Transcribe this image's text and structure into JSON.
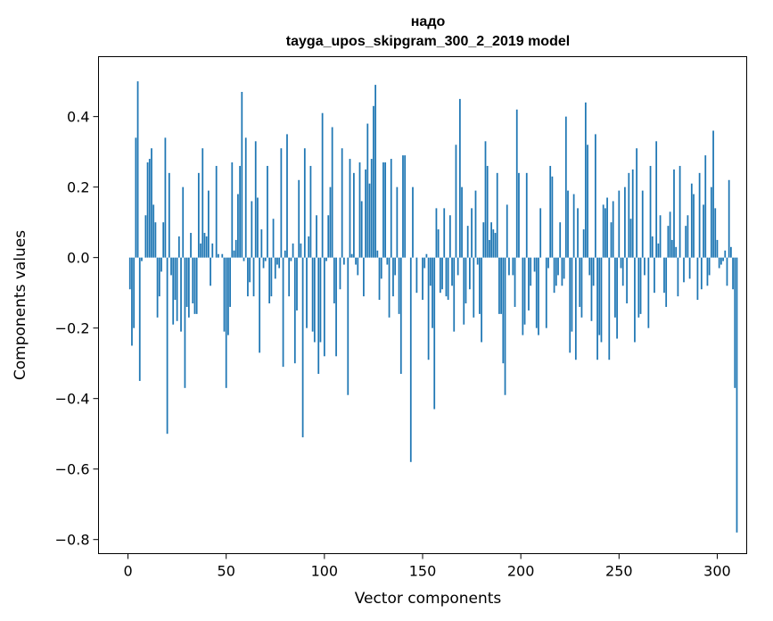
{
  "chart_data": {
    "type": "bar",
    "title_line1": "надо",
    "title_line2": "tayga_upos_skipgram_300_2_2019 model",
    "xlabel": "Vector components",
    "ylabel": "Components values",
    "xlim": [
      -15,
      315
    ],
    "ylim": [
      -0.84,
      0.57
    ],
    "xticks": [
      0,
      50,
      100,
      150,
      200,
      250,
      300
    ],
    "xtick_labels": [
      "0",
      "50",
      "100",
      "150",
      "200",
      "250",
      "300"
    ],
    "yticks": [
      -0.8,
      -0.6,
      -0.4,
      -0.2,
      0.0,
      0.2,
      0.4
    ],
    "ytick_labels": [
      "−0.8",
      "−0.6",
      "−0.4",
      "−0.2",
      "0.0",
      "0.2",
      "0.4"
    ],
    "bar_color": "#1f77b4",
    "values": [
      0.0,
      -0.09,
      -0.25,
      -0.2,
      0.34,
      0.5,
      -0.35,
      -0.01,
      0.0,
      0.12,
      0.27,
      0.28,
      0.31,
      0.15,
      0.1,
      -0.17,
      -0.11,
      -0.04,
      0.1,
      0.34,
      -0.5,
      0.24,
      -0.05,
      -0.19,
      -0.12,
      -0.18,
      0.06,
      -0.21,
      0.2,
      -0.37,
      -0.14,
      -0.17,
      0.07,
      -0.13,
      -0.16,
      -0.16,
      0.24,
      0.04,
      0.31,
      0.07,
      0.06,
      0.19,
      -0.08,
      0.04,
      0.0,
      0.26,
      0.01,
      0.0,
      0.01,
      -0.21,
      -0.37,
      -0.22,
      -0.14,
      0.27,
      0.02,
      0.05,
      0.18,
      0.26,
      0.47,
      -0.01,
      0.34,
      -0.11,
      -0.07,
      0.16,
      -0.11,
      0.33,
      0.17,
      -0.27,
      0.08,
      -0.03,
      -0.01,
      0.26,
      -0.13,
      -0.11,
      0.11,
      -0.06,
      -0.02,
      -0.03,
      0.31,
      -0.31,
      0.02,
      0.35,
      -0.11,
      -0.01,
      0.04,
      -0.3,
      -0.15,
      0.22,
      0.04,
      -0.51,
      0.31,
      -0.2,
      0.06,
      0.26,
      -0.21,
      -0.24,
      0.12,
      -0.33,
      -0.24,
      0.41,
      -0.28,
      -0.01,
      0.12,
      0.2,
      0.37,
      -0.13,
      -0.28,
      0.0,
      -0.09,
      0.31,
      -0.02,
      0.0,
      -0.39,
      0.28,
      0.01,
      0.24,
      -0.02,
      -0.05,
      0.27,
      0.16,
      -0.11,
      0.25,
      0.38,
      0.21,
      0.28,
      0.43,
      0.49,
      0.02,
      -0.12,
      -0.06,
      0.27,
      0.27,
      -0.02,
      -0.17,
      0.28,
      -0.11,
      -0.05,
      0.2,
      -0.16,
      -0.33,
      0.29,
      0.29,
      0.0,
      0.0,
      -0.58,
      0.2,
      0.0,
      -0.1,
      0.0,
      0.0,
      -0.12,
      -0.03,
      0.01,
      -0.29,
      -0.08,
      -0.2,
      -0.43,
      0.14,
      0.08,
      -0.1,
      -0.09,
      0.14,
      -0.11,
      -0.12,
      0.12,
      -0.08,
      -0.21,
      0.32,
      -0.05,
      0.45,
      0.2,
      -0.19,
      -0.13,
      0.09,
      -0.09,
      0.14,
      -0.17,
      0.19,
      -0.02,
      -0.16,
      -0.24,
      0.1,
      0.33,
      0.26,
      0.05,
      0.1,
      0.08,
      0.07,
      0.24,
      -0.16,
      -0.16,
      -0.3,
      -0.39,
      0.15,
      -0.05,
      0.0,
      -0.05,
      -0.14,
      0.42,
      0.24,
      0.0,
      -0.22,
      -0.19,
      0.24,
      -0.15,
      -0.08,
      0.0,
      -0.04,
      -0.2,
      -0.22,
      0.14,
      0.0,
      0.0,
      -0.2,
      -0.03,
      0.26,
      0.23,
      -0.1,
      -0.08,
      -0.05,
      0.1,
      -0.08,
      -0.06,
      0.4,
      0.19,
      -0.27,
      -0.21,
      0.18,
      -0.29,
      0.14,
      -0.14,
      -0.17,
      0.08,
      0.44,
      0.32,
      -0.05,
      -0.18,
      -0.08,
      0.35,
      -0.29,
      -0.22,
      -0.24,
      0.15,
      0.14,
      0.17,
      -0.29,
      0.1,
      0.16,
      -0.17,
      -0.23,
      0.19,
      -0.03,
      -0.08,
      0.2,
      -0.13,
      0.24,
      0.11,
      0.25,
      -0.24,
      0.31,
      -0.17,
      -0.16,
      0.19,
      -0.05,
      0.0,
      -0.2,
      0.26,
      0.06,
      -0.1,
      0.33,
      0.04,
      0.12,
      0.0,
      -0.1,
      -0.14,
      0.09,
      0.13,
      0.05,
      0.25,
      0.03,
      -0.11,
      0.26,
      0.0,
      -0.07,
      0.09,
      0.12,
      -0.06,
      0.21,
      0.18,
      0.0,
      -0.12,
      0.24,
      -0.09,
      0.15,
      0.29,
      -0.08,
      -0.05,
      0.2,
      0.36,
      0.14,
      0.05,
      -0.03,
      -0.02,
      -0.01,
      0.02,
      -0.08,
      0.22,
      0.03,
      -0.09,
      -0.37,
      -0.78
    ]
  }
}
